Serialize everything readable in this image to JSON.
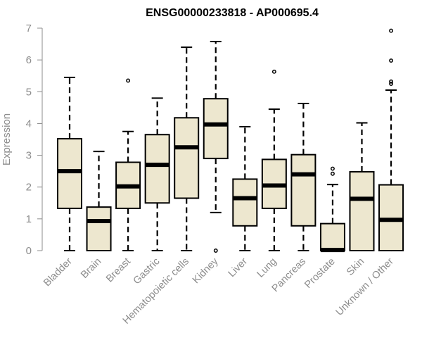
{
  "chart_data": {
    "type": "boxplot",
    "title": "ENSG00000233818 - AP000695.4",
    "xlabel": "",
    "ylabel": "Expression",
    "ylim": [
      0,
      7
    ],
    "yticks": [
      "0",
      "1",
      "2",
      "3",
      "4",
      "5",
      "6",
      "7"
    ],
    "categories": [
      "Bladder",
      "Brain",
      "Breast",
      "Gastric",
      "Hematopoietic cells",
      "Kidney",
      "Liver",
      "Lung",
      "Pancreas",
      "Prostate",
      "Skin",
      "Unknown / Other"
    ],
    "boxes": [
      {
        "min": 0,
        "q1": 1.33,
        "median": 2.5,
        "q3": 3.52,
        "max": 5.45,
        "outliers": []
      },
      {
        "min": 0,
        "q1": 0,
        "median": 0.93,
        "q3": 1.37,
        "max": 3.12,
        "outliers": []
      },
      {
        "min": 0,
        "q1": 1.33,
        "median": 2.02,
        "q3": 2.78,
        "max": 3.75,
        "outliers": [
          5.35
        ]
      },
      {
        "min": 0,
        "q1": 1.5,
        "median": 2.7,
        "q3": 3.65,
        "max": 4.8,
        "outliers": []
      },
      {
        "min": 0,
        "q1": 1.65,
        "median": 3.25,
        "q3": 4.18,
        "max": 6.4,
        "outliers": []
      },
      {
        "min": 1.2,
        "q1": 2.9,
        "median": 3.97,
        "q3": 4.78,
        "max": 6.58,
        "outliers": [
          0
        ]
      },
      {
        "min": 0,
        "q1": 0.78,
        "median": 1.65,
        "q3": 2.25,
        "max": 3.9,
        "outliers": []
      },
      {
        "min": 0,
        "q1": 1.33,
        "median": 2.05,
        "q3": 2.87,
        "max": 4.45,
        "outliers": [
          5.63
        ]
      },
      {
        "min": 0,
        "q1": 0.78,
        "median": 2.4,
        "q3": 3.02,
        "max": 4.63,
        "outliers": []
      },
      {
        "min": 0,
        "q1": 0,
        "median": 0.02,
        "q3": 0.85,
        "max": 2.08,
        "outliers": [
          2.42,
          2.58
        ]
      },
      {
        "min": 0,
        "q1": 0,
        "median": 1.63,
        "q3": 2.48,
        "max": 4.02,
        "outliers": []
      },
      {
        "min": 0,
        "q1": 0,
        "median": 0.97,
        "q3": 2.07,
        "max": 5.05,
        "outliers": [
          5.25,
          5.32,
          5.98,
          6.92
        ]
      }
    ],
    "grid": false,
    "legend": "none",
    "colors": {
      "box_fill": "#ede7cf",
      "box_stroke": "#000000",
      "axis": "#8c8c8c"
    }
  }
}
